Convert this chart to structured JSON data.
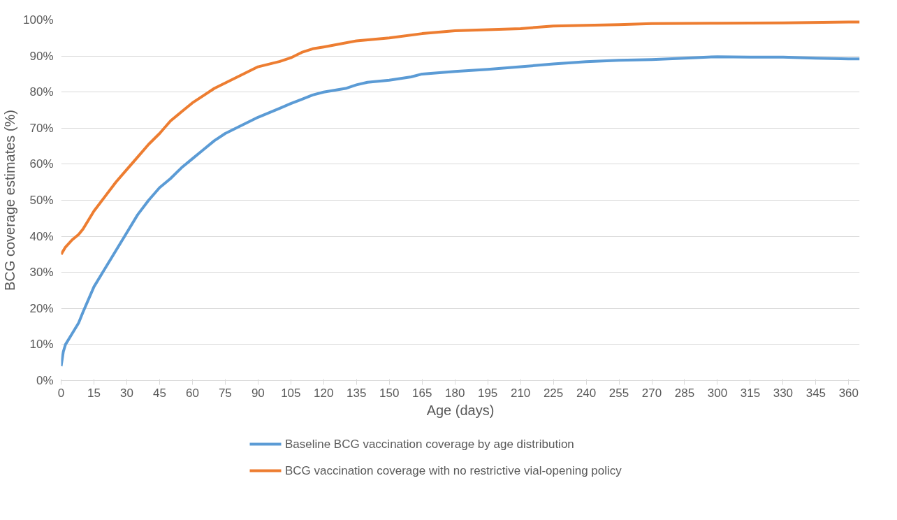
{
  "chart_data": {
    "type": "line",
    "xlabel": "Age (days)",
    "ylabel": "BCG coverage estimates (%)",
    "xlim": [
      0,
      365
    ],
    "xticks": [
      0,
      15,
      30,
      45,
      60,
      75,
      90,
      105,
      120,
      135,
      150,
      165,
      180,
      195,
      210,
      225,
      240,
      255,
      270,
      285,
      300,
      315,
      330,
      345,
      360
    ],
    "ylim": [
      0,
      100
    ],
    "yticks": [
      {
        "value": 0,
        "label": "0%"
      },
      {
        "value": 10,
        "label": "10%"
      },
      {
        "value": 20,
        "label": "20%"
      },
      {
        "value": 30,
        "label": "30%"
      },
      {
        "value": 40,
        "label": "40%"
      },
      {
        "value": 50,
        "label": "50%"
      },
      {
        "value": 60,
        "label": "60%"
      },
      {
        "value": 70,
        "label": "70%"
      },
      {
        "value": 80,
        "label": "80%"
      },
      {
        "value": 90,
        "label": "90%"
      },
      {
        "value": 100,
        "label": "100%"
      }
    ],
    "grid": "y",
    "legend": "bottom",
    "marker": "none",
    "line_style": "solid",
    "series": [
      {
        "name": "Baseline BCG vaccination coverage by age distribution",
        "color": "#5b9bd5",
        "x": [
          0,
          1,
          2,
          5,
          8,
          10,
          15,
          20,
          25,
          30,
          35,
          40,
          45,
          50,
          55,
          60,
          65,
          70,
          75,
          80,
          90,
          100,
          105,
          110,
          115,
          120,
          130,
          135,
          140,
          150,
          160,
          165,
          180,
          195,
          210,
          225,
          240,
          255,
          270,
          285,
          300,
          315,
          330,
          345,
          360,
          365
        ],
        "values": [
          4,
          8,
          10,
          13,
          16,
          19,
          26,
          31,
          36,
          41,
          46,
          50,
          53.5,
          56,
          59,
          61.5,
          64,
          66.5,
          68.5,
          70,
          73,
          75.5,
          76.8,
          78,
          79.2,
          80,
          81,
          82,
          82.7,
          83.3,
          84.2,
          85,
          85.7,
          86.3,
          87,
          87.8,
          88.4,
          88.8,
          89,
          89.4,
          89.8,
          89.7,
          89.7,
          89.4,
          89.2,
          89.2
        ]
      },
      {
        "name": "BCG vaccination coverage with no restrictive vial-opening policy",
        "color": "#ed7d31",
        "x": [
          0,
          2,
          5,
          8,
          10,
          15,
          20,
          25,
          30,
          35,
          40,
          45,
          50,
          55,
          60,
          65,
          70,
          75,
          80,
          90,
          100,
          105,
          110,
          115,
          120,
          135,
          150,
          165,
          180,
          195,
          210,
          225,
          240,
          255,
          270,
          300,
          330,
          360,
          365
        ],
        "values": [
          35,
          37,
          39,
          40.5,
          42,
          47,
          51,
          55,
          58.5,
          62,
          65.5,
          68.5,
          72,
          74.5,
          77,
          79,
          81,
          82.5,
          84,
          87,
          88.5,
          89.5,
          91,
          92,
          92.5,
          94.2,
          95,
          96.2,
          97,
          97.3,
          97.6,
          98.3,
          98.5,
          98.7,
          99,
          99.1,
          99.2,
          99.4,
          99.4
        ]
      }
    ]
  }
}
